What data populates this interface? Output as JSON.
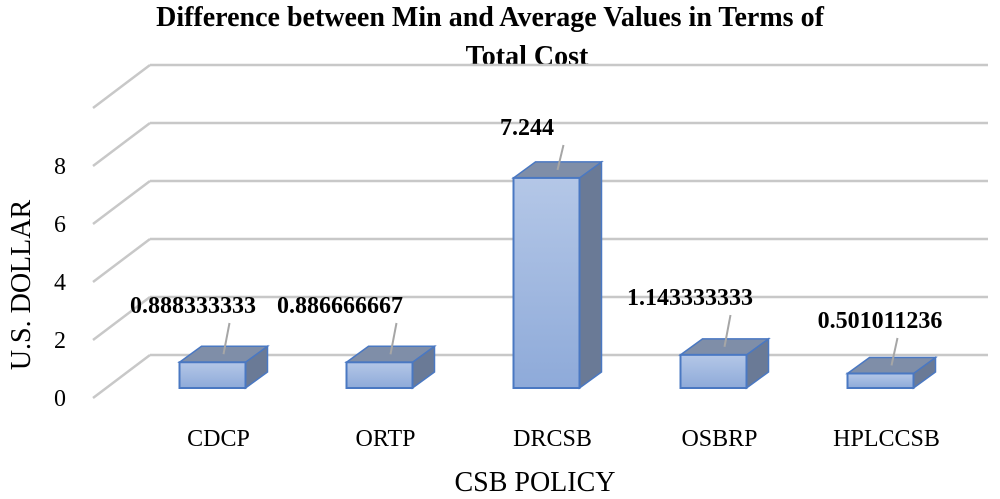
{
  "chart_data": {
    "type": "bar",
    "title": "Difference between Min and Average Values in Terms of Total Cost",
    "title_lines": [
      "Difference between Min and Average Values in Terms of",
      "Total Cost"
    ],
    "xlabel": "CSB POLICY",
    "ylabel": "U.S. DOLLAR",
    "categories": [
      "CDCP",
      "ORTP",
      "DRCSB",
      "OSBRP",
      "HPLCCSB"
    ],
    "values": [
      0.888333333,
      0.886666667,
      7.244,
      1.143333333,
      0.501011236
    ],
    "data_labels": [
      "0.888333333",
      "0.886666667",
      "7.244",
      "1.143333333",
      "0.501011236"
    ],
    "ylim": [
      0,
      10
    ],
    "yticks": [
      0,
      2,
      4,
      6,
      8
    ],
    "grid": true,
    "legend": "none",
    "bar_colors": {
      "front_top": "#b4c7e7",
      "front_bottom": "#8eaad9",
      "side": "#6a7a96",
      "top": "#7f8ea8",
      "edge": "#4a78c2"
    }
  }
}
